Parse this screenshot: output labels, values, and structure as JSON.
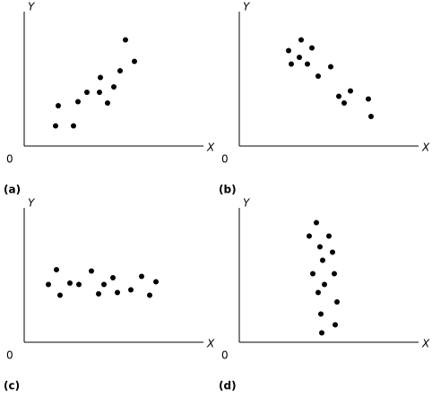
{
  "chart_data": [
    {
      "type": "scatter",
      "title": "(a)",
      "x_label": "X",
      "y_label": "Y",
      "color": "#000000",
      "grid": false,
      "xlim": [
        0,
        100
      ],
      "ylim": [
        0,
        100
      ],
      "xticks": [
        0
      ],
      "x": [
        17.5,
        27.5,
        19,
        30,
        35,
        42,
        42.5,
        46.5,
        50,
        53.5,
        56.5,
        61.5
      ],
      "values": [
        15,
        15,
        30,
        33,
        40,
        40,
        51,
        32,
        44,
        56,
        79,
        63
      ]
    },
    {
      "type": "scatter",
      "title": "(b)",
      "x_label": "X",
      "y_label": "Y",
      "color": "#000000",
      "grid": false,
      "xlim": [
        0,
        100
      ],
      "ylim": [
        0,
        100
      ],
      "xticks": [
        0
      ],
      "x": [
        27.5,
        34.5,
        40.5,
        29,
        33.5,
        38,
        44,
        51,
        55.5,
        62,
        58.5,
        72,
        73.5
      ],
      "values": [
        71,
        79,
        73,
        61,
        66,
        61,
        52,
        59,
        37,
        41,
        32,
        35,
        22
      ]
    },
    {
      "type": "scatter",
      "title": "(c)",
      "x_label": "X",
      "y_label": "Y",
      "color": "#000000",
      "grid": false,
      "xlim": [
        0,
        100
      ],
      "ylim": [
        0,
        100
      ],
      "xticks": [
        0
      ],
      "x": [
        13.5,
        18,
        20,
        25.5,
        30.5,
        37.5,
        41.5,
        44.5,
        49.5,
        52,
        59.5,
        65.5,
        70,
        73.5
      ],
      "values": [
        43,
        54,
        35,
        44,
        43,
        53,
        36,
        43,
        48,
        37,
        39,
        49,
        35,
        45
      ]
    },
    {
      "type": "scatter",
      "title": "(d)",
      "x_label": "X",
      "y_label": "Y",
      "color": "#000000",
      "grid": false,
      "xlim": [
        0,
        100
      ],
      "ylim": [
        0,
        100
      ],
      "xticks": [
        0
      ],
      "x": [
        43,
        39,
        50,
        45,
        52,
        46.5,
        41,
        53,
        47.5,
        44,
        54.5,
        45.5,
        53.5,
        46
      ],
      "values": [
        89,
        79,
        79,
        71,
        67,
        61,
        51,
        51,
        43,
        37,
        30,
        21,
        13,
        7
      ]
    }
  ]
}
